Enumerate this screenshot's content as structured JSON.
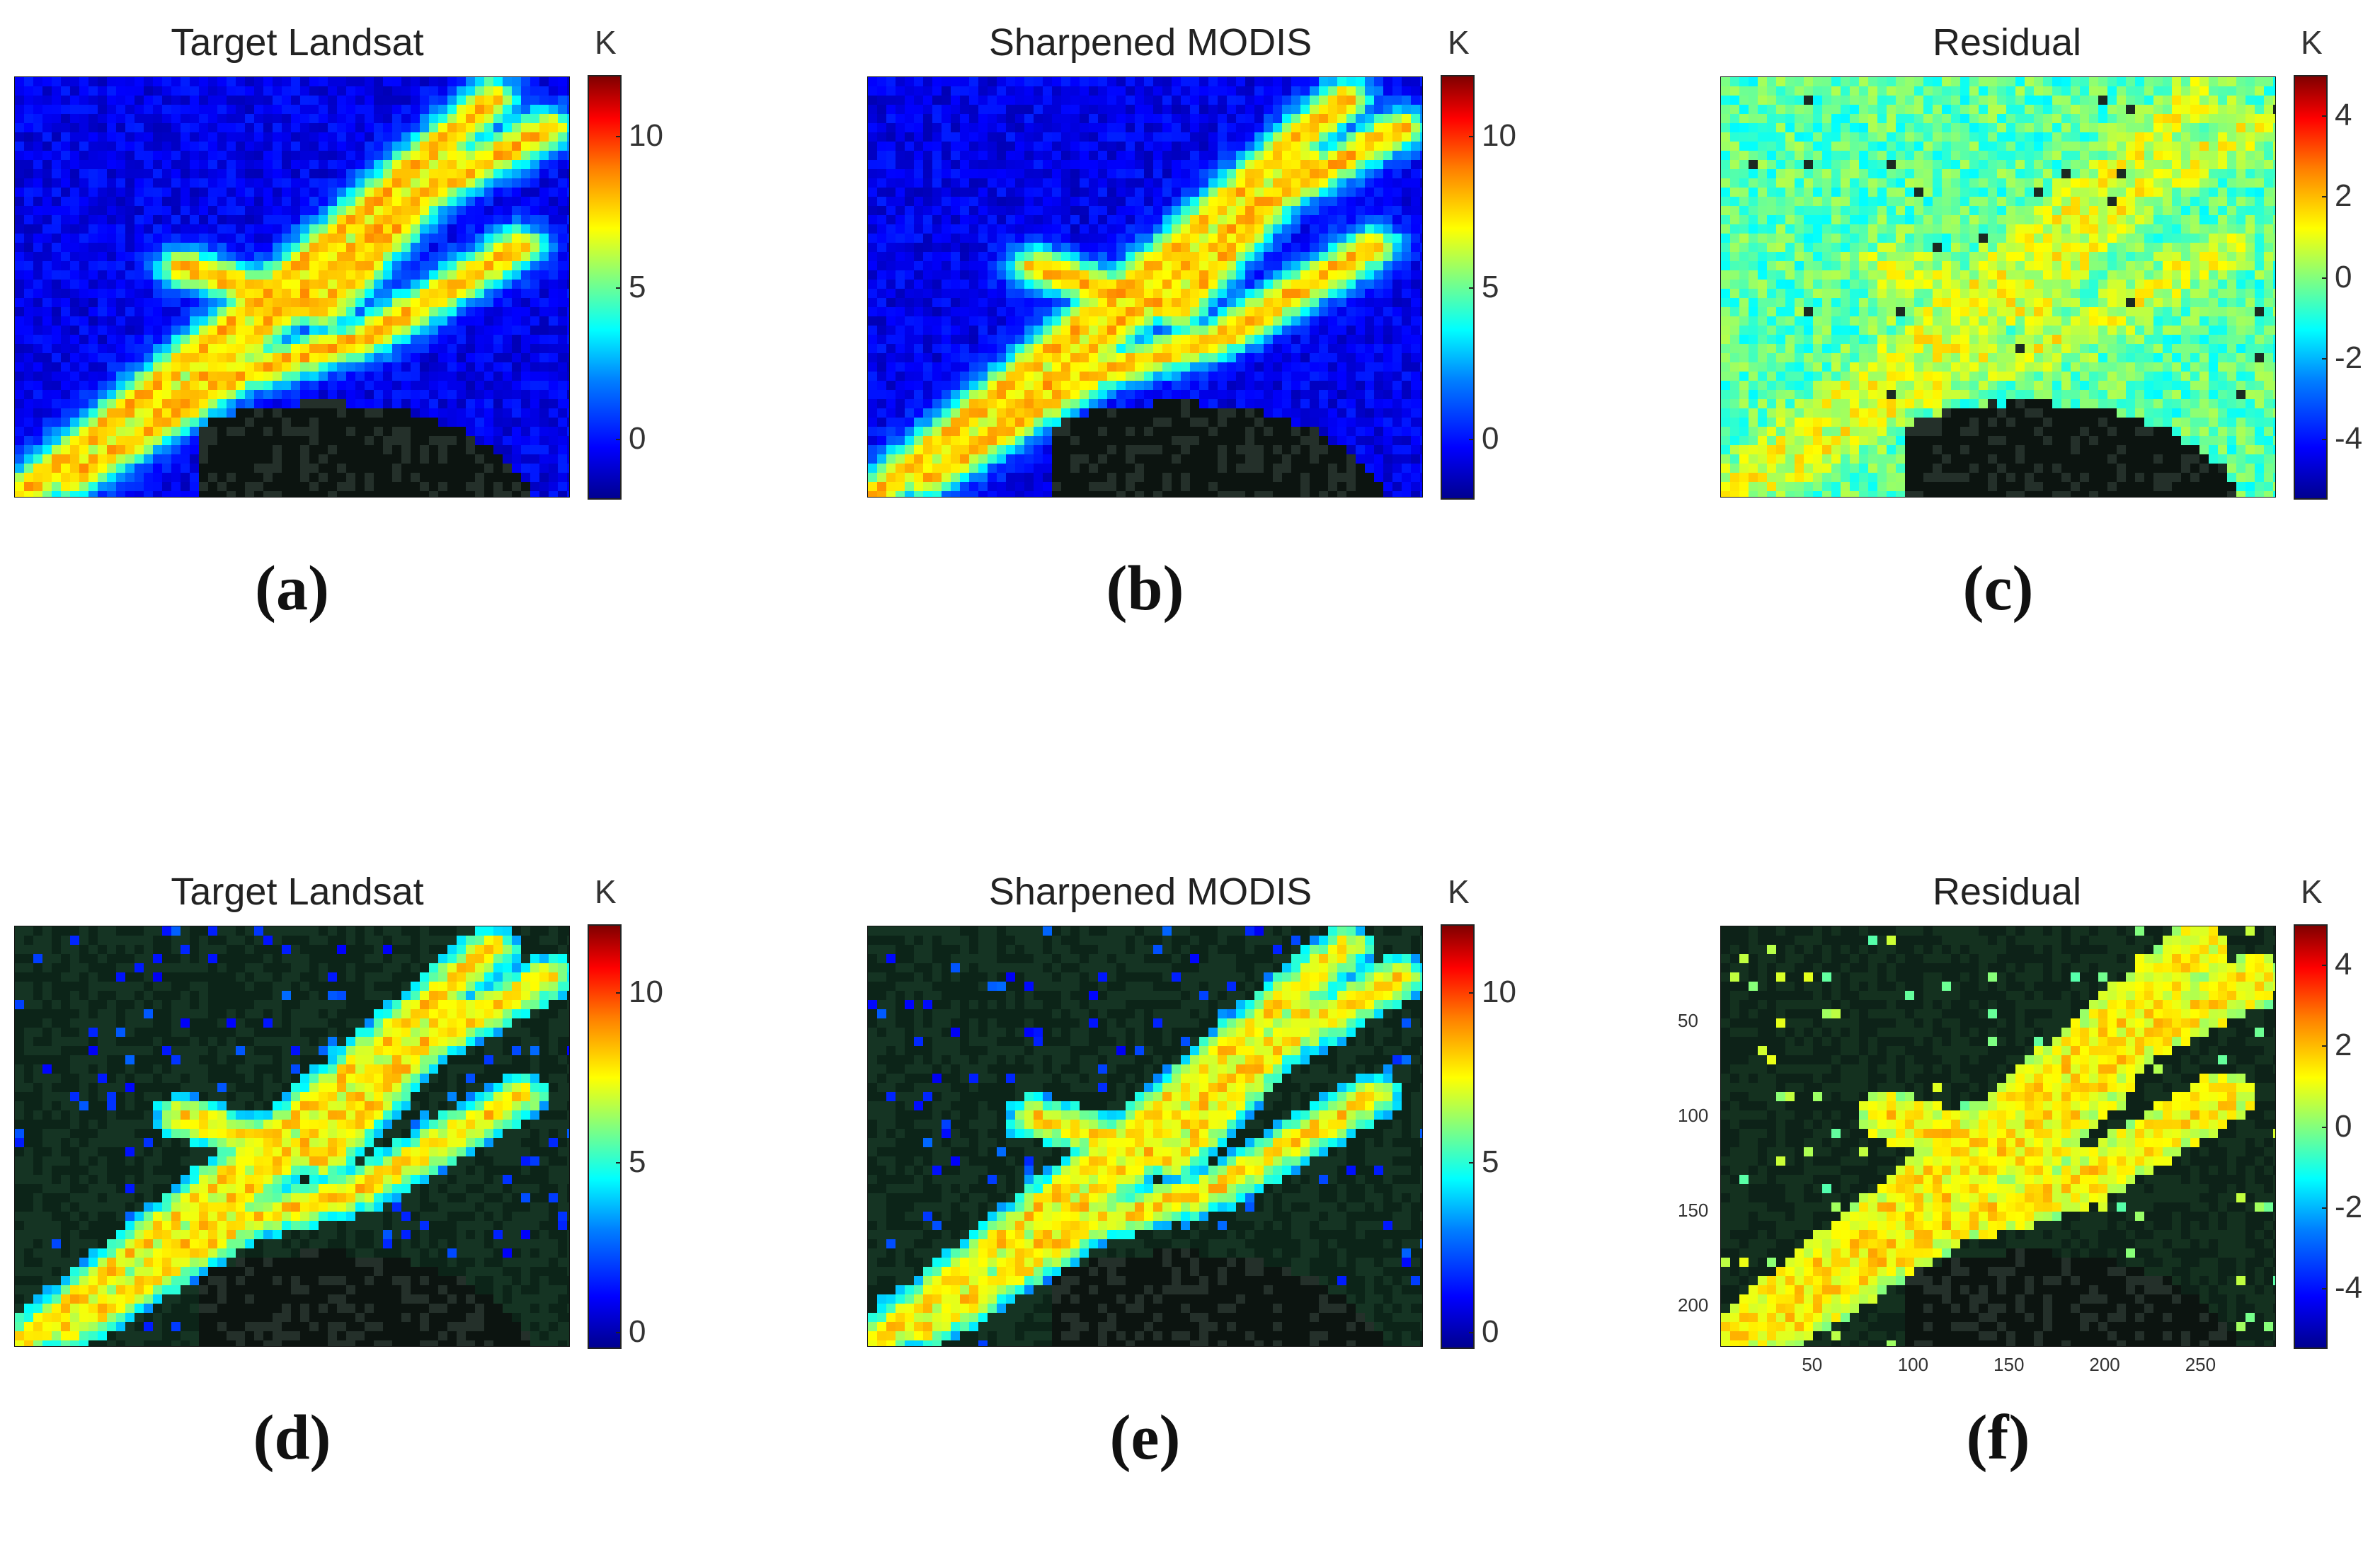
{
  "chart_data": [
    {
      "type": "heatmap",
      "panel_label": "(a)",
      "title": "Target Landsat",
      "colorbar_unit": "K",
      "colorbar_ticks": [
        "10",
        "5",
        "0"
      ],
      "colorbar_range": [
        -2,
        12
      ],
      "background": "blue-filled LST map",
      "colors": {
        "low": "#0000a0",
        "high": "#a00000"
      }
    },
    {
      "type": "heatmap",
      "panel_label": "(b)",
      "title": "Sharpened MODIS",
      "colorbar_unit": "K",
      "colorbar_ticks": [
        "10",
        "5",
        "0"
      ],
      "colorbar_range": [
        -2,
        12
      ],
      "background": "blue-filled LST map"
    },
    {
      "type": "heatmap",
      "panel_label": "(c)",
      "title": "Residual",
      "colorbar_unit": "K",
      "colorbar_ticks": [
        "4",
        "2",
        "0",
        "-2",
        "-4"
      ],
      "colorbar_range": [
        -5.5,
        5
      ],
      "background": "residual map, mostly near 0-2 K"
    },
    {
      "type": "heatmap",
      "panel_label": "(d)",
      "title": "Target Landsat",
      "colorbar_unit": "K",
      "colorbar_ticks": [
        "10",
        "5",
        "0"
      ],
      "colorbar_range": [
        -0.5,
        12
      ],
      "background": "urban LST over true-color image"
    },
    {
      "type": "heatmap",
      "panel_label": "(e)",
      "title": "Sharpened MODIS",
      "colorbar_unit": "K",
      "colorbar_ticks": [
        "10",
        "5",
        "0"
      ],
      "colorbar_range": [
        -0.5,
        12
      ],
      "background": "urban LST over true-color image"
    },
    {
      "type": "heatmap",
      "panel_label": "(f)",
      "title": "Residual",
      "colorbar_unit": "K",
      "colorbar_ticks": [
        "4",
        "2",
        "0",
        "-2",
        "-4"
      ],
      "colorbar_range": [
        -5.5,
        5
      ],
      "x_ticks": [
        "50",
        "100",
        "150",
        "200",
        "250"
      ],
      "y_ticks": [
        "50",
        "100",
        "150",
        "200"
      ],
      "x_range": [
        0,
        290
      ],
      "y_range": [
        0,
        222
      ]
    }
  ]
}
